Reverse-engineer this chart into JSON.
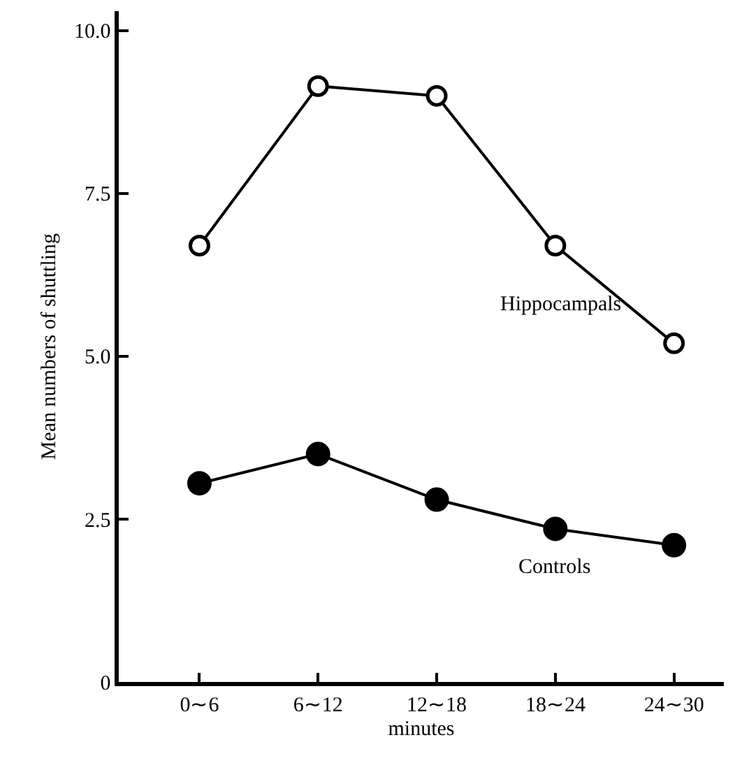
{
  "chart_data": {
    "type": "line",
    "xlabel": "minutes",
    "ylabel": "Mean numbers of shuttling",
    "categories": [
      "0∼6",
      "6∼12",
      "12∼18",
      "18∼24",
      "24∼30"
    ],
    "series": [
      {
        "name": "Hippocampals",
        "color": "#000000",
        "marker": "circle-open",
        "values": [
          6.7,
          9.15,
          9.0,
          6.7,
          5.2
        ]
      },
      {
        "name": "Controls",
        "color": "#000000",
        "marker": "circle",
        "values": [
          3.05,
          3.5,
          2.8,
          2.35,
          2.1
        ]
      }
    ],
    "ylim": [
      0,
      10.3
    ],
    "yticks": [
      0,
      2.5,
      {
        "value": 5,
        "label": "5.0"
      },
      7.5,
      {
        "value": 10,
        "label": "10.0"
      }
    ],
    "legend": false,
    "line_style": "solid"
  }
}
